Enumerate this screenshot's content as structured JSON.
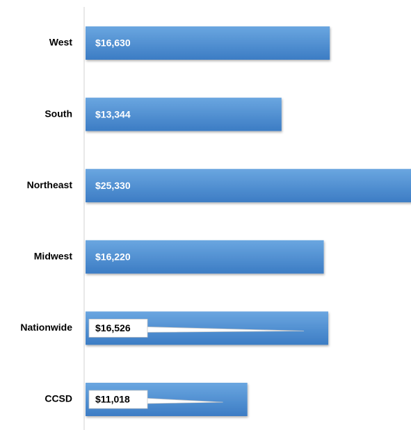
{
  "chart_data": {
    "type": "bar",
    "orientation": "horizontal",
    "categories": [
      "West",
      "South",
      "Northeast",
      "Midwest",
      "Nationwide",
      "CCSD"
    ],
    "values": [
      16630,
      13344,
      25330,
      16220,
      16526,
      11018
    ],
    "value_labels": [
      "$16,630",
      "$13,344",
      "$25,330",
      "$16,220",
      "$16,526",
      "$11,018"
    ],
    "color": "#4a8ad0",
    "xlim": [
      0,
      22160
    ]
  }
}
